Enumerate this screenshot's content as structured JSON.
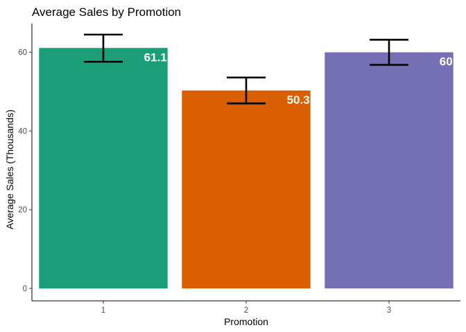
{
  "chart_data": {
    "type": "bar",
    "title": "Average Sales by Promotion",
    "xlabel": "Promotion",
    "ylabel": "Average Sales (Thousands)",
    "categories": [
      "1",
      "2",
      "3"
    ],
    "values": [
      61.1,
      50.3,
      60.0
    ],
    "labels": [
      "61.1",
      "50.3",
      "60"
    ],
    "error_bars": [
      {
        "low": 57.6,
        "high": 64.5
      },
      {
        "low": 47.0,
        "high": 53.6
      },
      {
        "low": 56.8,
        "high": 63.2
      }
    ],
    "colors": [
      "#1b9e77",
      "#d95f02",
      "#7570b3"
    ],
    "ylim": [
      0,
      68
    ],
    "yticks": [
      0,
      20,
      40,
      60
    ],
    "ytick_labels": [
      "0",
      "20",
      "40",
      "60"
    ],
    "grid": false,
    "legend": "none"
  }
}
